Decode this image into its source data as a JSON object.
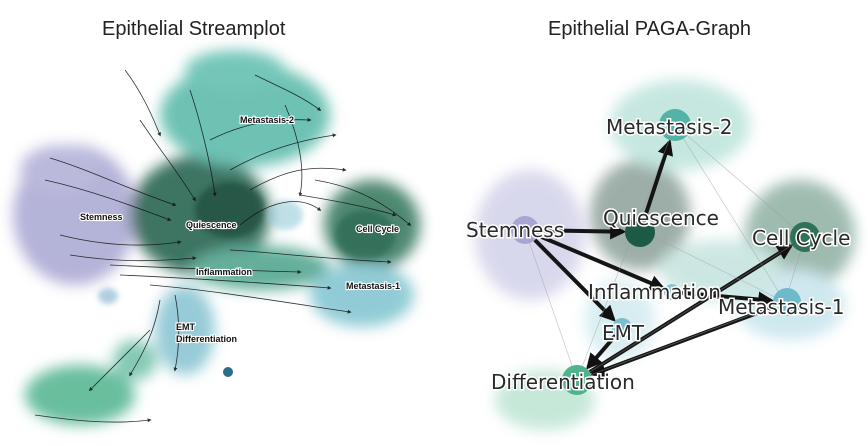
{
  "streamplot": {
    "title": "Epithelial Streamplot",
    "labels": {
      "stemness": "Stemness",
      "quiescence": "Quiescence",
      "metastasis2": "Metastasis-2",
      "cell_cycle": "Cell Cycle",
      "inflammation": "Inflammation",
      "metastasis1": "Metastasis-1",
      "emt": "EMT",
      "differentiation": "Differentiation"
    }
  },
  "paga": {
    "title": "Epithelial PAGA-Graph",
    "nodes": [
      {
        "id": "metastasis2",
        "label": "Metastasis-2"
      },
      {
        "id": "quiescence",
        "label": "Quiescence"
      },
      {
        "id": "stemness",
        "label": "Stemness"
      },
      {
        "id": "cell_cycle",
        "label": "Cell Cycle"
      },
      {
        "id": "inflammation",
        "label": "Inflammation"
      },
      {
        "id": "metastasis1",
        "label": "Metastasis-1"
      },
      {
        "id": "emt",
        "label": "EMT"
      },
      {
        "id": "differentiation",
        "label": "Differentiation"
      }
    ],
    "edges": [
      {
        "from": "stemness",
        "to": "quiescence"
      },
      {
        "from": "quiescence",
        "to": "metastasis2"
      },
      {
        "from": "stemness",
        "to": "inflammation"
      },
      {
        "from": "stemness",
        "to": "emt"
      },
      {
        "from": "emt",
        "to": "differentiation"
      },
      {
        "from": "metastasis1",
        "to": "differentiation"
      },
      {
        "from": "inflammation",
        "to": "metastasis1"
      },
      {
        "from": "differentiation",
        "to": "cell_cycle"
      }
    ]
  },
  "colors": {
    "stemness": "#a7a6d2",
    "quiescence": "#1d5a45",
    "metastasis2": "#52b3a6",
    "cell_cycle": "#2e7258",
    "inflammation": "#8cc6d3",
    "metastasis1": "#6fb9c9",
    "emt": "#79bfd0",
    "differentiation": "#4fb38e"
  }
}
